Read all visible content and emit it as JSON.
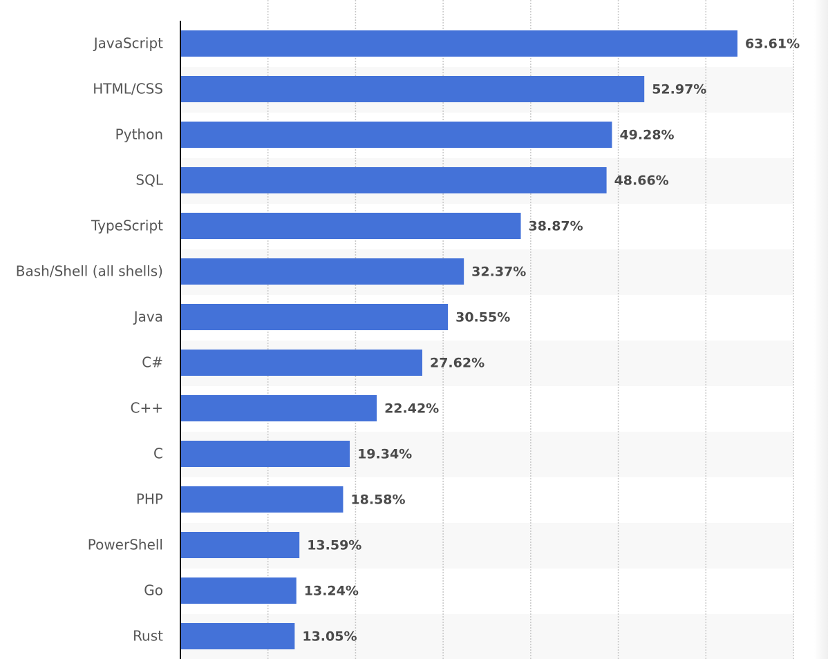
{
  "chart_data": {
    "type": "bar",
    "orientation": "horizontal",
    "categories": [
      "JavaScript",
      "HTML/CSS",
      "Python",
      "SQL",
      "TypeScript",
      "Bash/Shell (all shells)",
      "Java",
      "C#",
      "C++",
      "C",
      "PHP",
      "PowerShell",
      "Go",
      "Rust"
    ],
    "values": [
      63.61,
      52.97,
      49.28,
      48.66,
      38.87,
      32.37,
      30.55,
      27.62,
      22.42,
      19.34,
      18.58,
      13.59,
      13.24,
      13.05
    ],
    "data_labels": [
      "63.61%",
      "52.97%",
      "49.28%",
      "48.66%",
      "38.87%",
      "32.37%",
      "30.55%",
      "27.62%",
      "22.42%",
      "19.34%",
      "18.58%",
      "13.59%",
      "13.24%",
      "13.05%"
    ],
    "xlim": [
      0,
      70
    ],
    "grid": true,
    "gridline_step": 10,
    "bar_color": "#4472d8",
    "band_color": "#f8f8f8",
    "label_color": "#4a4a4a"
  }
}
